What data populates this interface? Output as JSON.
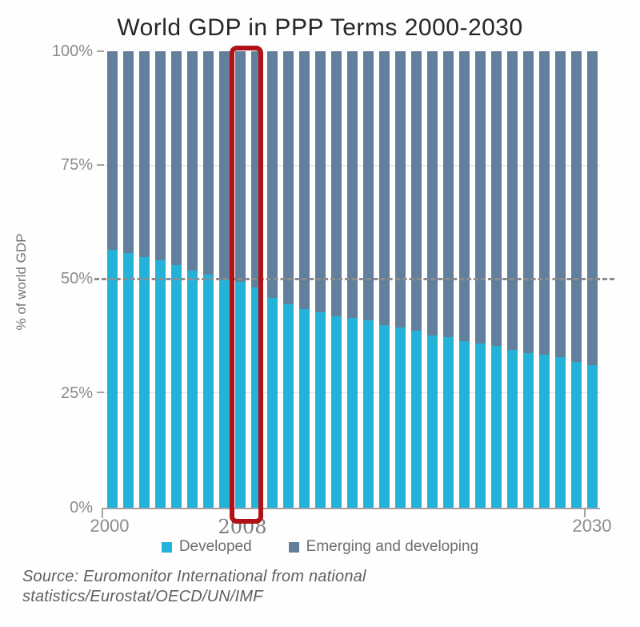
{
  "title": "World GDP in PPP Terms 2000-2030",
  "y_axis": {
    "title": "% of world GDP",
    "ticks": [
      "100%",
      "75%",
      "50%",
      "25%",
      "0%"
    ]
  },
  "x_axis": {
    "labels": [
      "2000",
      "2008",
      "2030"
    ]
  },
  "legend": {
    "items": [
      {
        "label": "Developed",
        "color": "#25b2d8"
      },
      {
        "label": "Emerging and developing",
        "color": "#62809c"
      }
    ]
  },
  "source": {
    "lines": [
      "Source: Euromonitor International from national",
      "statistics/Eurostat/OECD/UN/IMF"
    ]
  },
  "highlight": {
    "category": "2008",
    "color": "#b01218"
  },
  "colors": {
    "developed": "#25b2d8",
    "emerging": "#62809c",
    "highlight_box": "#b01218",
    "dashed_50_line": "#8c8c8c",
    "faint_gridline": "#dcdcdc",
    "axis": "#a3a3a3",
    "tick_text": "#8c8c8c"
  },
  "chart_data": {
    "type": "bar",
    "stacked": true,
    "title": "World GDP in PPP Terms 2000-2030",
    "xlabel": "",
    "ylabel": "% of world GDP",
    "ylim": [
      0,
      100
    ],
    "y_tick_labels": [
      "0%",
      "25%",
      "50%",
      "75%",
      "100%"
    ],
    "x_tick_labels_shown": [
      "2000",
      "2008",
      "2030"
    ],
    "legend_position": "bottom",
    "grid": {
      "dashed_line_at": 50,
      "faint_lines_at": [
        25,
        75
      ]
    },
    "highlighted_category": "2008",
    "categories": [
      "2000",
      "2001",
      "2002",
      "2003",
      "2004",
      "2005",
      "2006",
      "2007",
      "2008",
      "2009",
      "2010",
      "2011",
      "2012",
      "2013",
      "2014",
      "2015",
      "2016",
      "2017",
      "2018",
      "2019",
      "2020",
      "2021",
      "2022",
      "2023",
      "2024",
      "2025",
      "2026",
      "2027",
      "2028",
      "2029",
      "2030"
    ],
    "series": [
      {
        "name": "Developed",
        "color": "#25b2d8",
        "values": [
          56.5,
          55.8,
          55.0,
          54.2,
          53.2,
          52.0,
          51.0,
          49.8,
          49.5,
          48.2,
          46.0,
          44.5,
          43.5,
          42.8,
          42.0,
          41.5,
          41.0,
          40.0,
          39.4,
          38.8,
          37.8,
          37.3,
          36.5,
          36.0,
          35.5,
          34.6,
          33.9,
          33.5,
          33.0,
          31.9,
          31.3
        ]
      },
      {
        "name": "Emerging and developing",
        "color": "#62809c",
        "values": [
          43.5,
          44.2,
          45.0,
          45.8,
          46.8,
          48.0,
          49.0,
          50.2,
          50.5,
          51.8,
          54.0,
          55.5,
          56.5,
          57.2,
          58.0,
          58.5,
          59.0,
          60.0,
          60.6,
          61.2,
          62.2,
          62.7,
          63.5,
          64.0,
          64.5,
          65.4,
          66.1,
          66.5,
          67.0,
          68.1,
          68.7
        ]
      }
    ]
  }
}
